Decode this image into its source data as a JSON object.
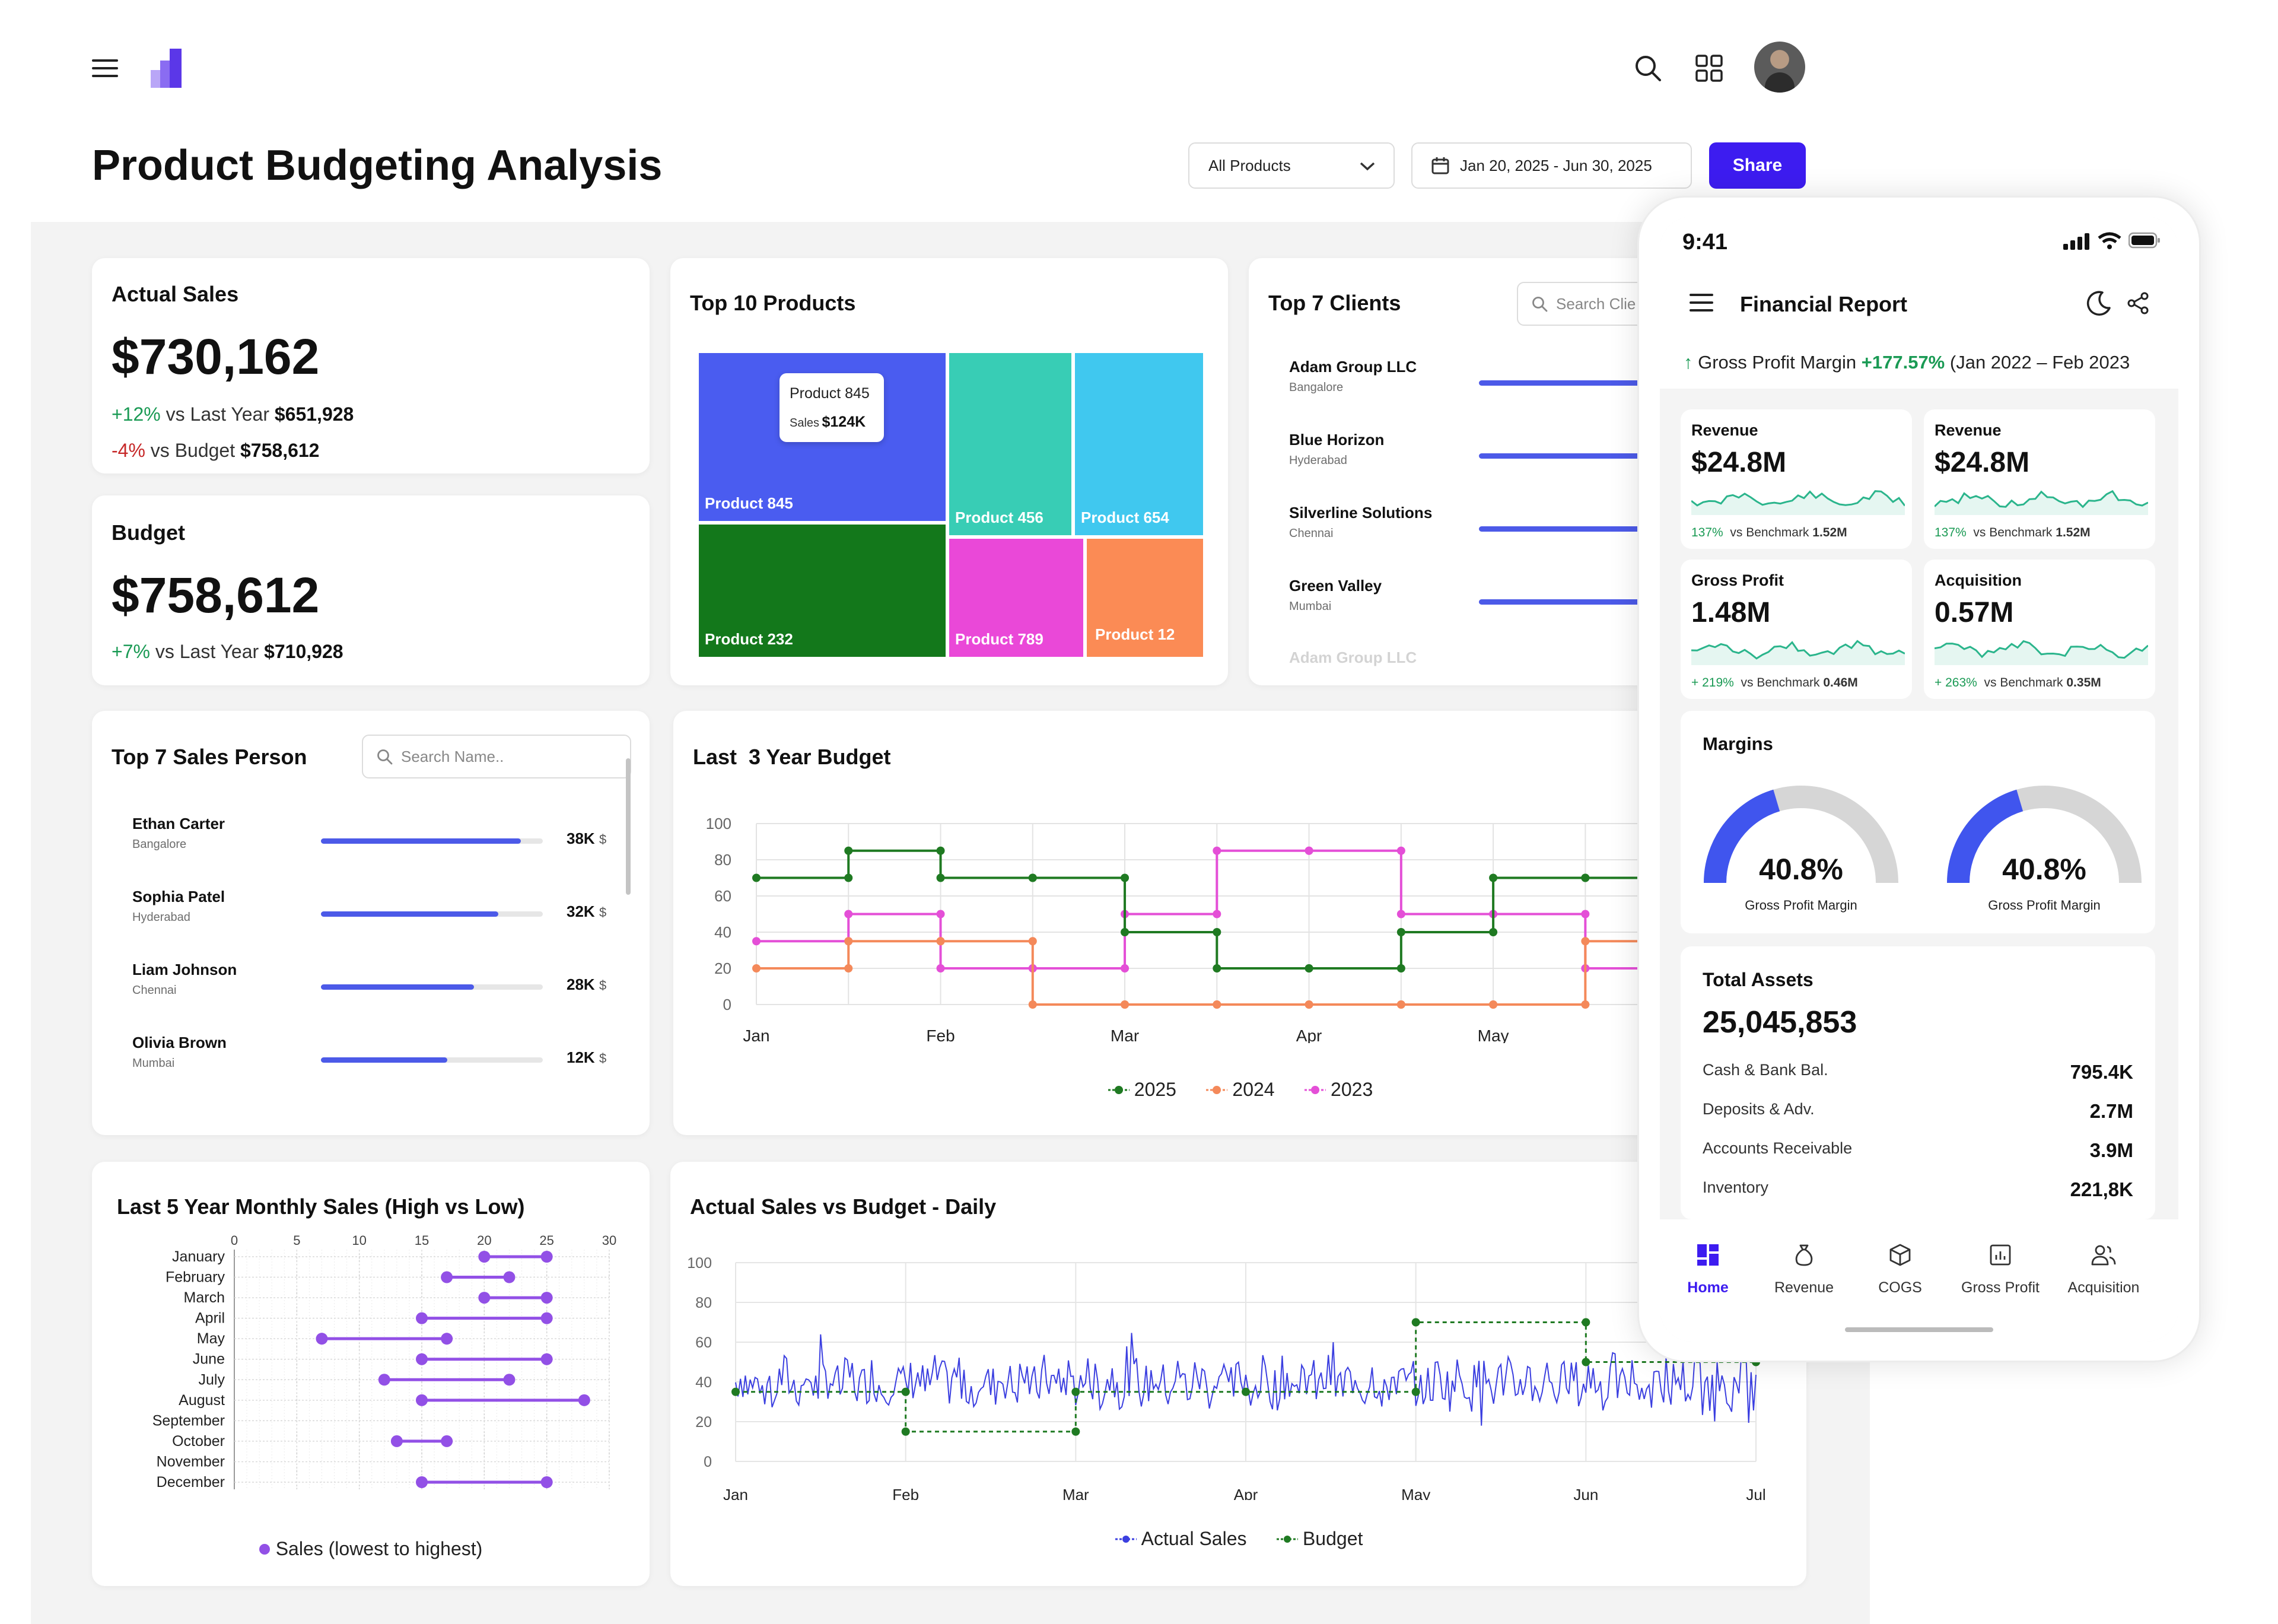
{
  "header": {
    "title": "Product Budgeting Analysis",
    "product_filter": "All Products",
    "date_range": "Jan 20, 2025 - Jun 30, 2025",
    "share_label": "Share"
  },
  "actual_sales": {
    "title": "Actual Sales",
    "value": "$730,162",
    "line1_pct": "+12%",
    "line1_text": "vs Last Year",
    "line1_value": "$651,928",
    "line2_pct": "-4%",
    "line2_text": "vs Budget",
    "line2_value": "$758,612"
  },
  "budget": {
    "title": "Budget",
    "value": "$758,612",
    "line1_pct": "+7%",
    "line1_text": "vs Last Year",
    "line1_value": "$710,928"
  },
  "top_products": {
    "title": "Top 10 Products",
    "tiles": [
      {
        "label": "Product 845",
        "color": "#4a5cf0"
      },
      {
        "label": "Product 456",
        "color": "#38cdb5"
      },
      {
        "label": "Product 654",
        "color": "#40c8ef"
      },
      {
        "label": "Product 232",
        "color": "#13781b"
      },
      {
        "label": "Product 789",
        "color": "#ea48d8"
      },
      {
        "label": "Product 12",
        "color": "#fb8b55"
      }
    ],
    "tooltip_name": "Product 845",
    "tooltip_label": "Sales",
    "tooltip_value": "$124K"
  },
  "top_clients": {
    "title": "Top 7 Clients",
    "search_placeholder": "Search Clie",
    "items": [
      {
        "name": "Adam Group LLC",
        "city": "Bangalore",
        "level": 0.9
      },
      {
        "name": "Blue Horizon",
        "city": "Hyderabad",
        "level": 0.82
      },
      {
        "name": "Silverline Solutions",
        "city": "Chennai",
        "level": 0.74
      },
      {
        "name": "Green Valley",
        "city": "Mumbai",
        "level": 0.6
      },
      {
        "name": "Adam Group LLC",
        "city": "",
        "level": 0.5
      }
    ]
  },
  "sales_person": {
    "title": "Top 7 Sales Person",
    "search_placeholder": "Search Name..",
    "items": [
      {
        "name": "Ethan Carter",
        "city": "Bangalore",
        "value": "38K",
        "unit": "$",
        "level": 0.9
      },
      {
        "name": "Sophia Patel",
        "city": "Hyderabad",
        "value": "32K",
        "unit": "$",
        "level": 0.8
      },
      {
        "name": "Liam Johnson",
        "city": "Chennai",
        "value": "28K",
        "unit": "$",
        "level": 0.69
      },
      {
        "name": "Olivia Brown",
        "city": "Mumbai",
        "value": "12K",
        "unit": "$",
        "level": 0.57
      }
    ]
  },
  "budget_chart": {
    "title": "Last  3 Year Budget",
    "legend": [
      "2025",
      "2024",
      "2023"
    ],
    "colors": [
      "#1f7a22",
      "#f4895a",
      "#e44fd7"
    ]
  },
  "monthly_chart": {
    "title": "Last 5 Year Monthly Sales (High vs Low)",
    "legend": "Sales (lowest to highest)",
    "color": "#9250e6"
  },
  "daily_chart": {
    "title": "Actual Sales vs Budget - Daily",
    "legend": [
      "Actual Sales",
      "Budget"
    ],
    "colors": [
      "#3b3fe0",
      "#1f7a22"
    ]
  },
  "chart_data": [
    {
      "type": "line",
      "title": "Last  3 Year Budget",
      "categories": [
        "Jan",
        "Feb",
        "Mar",
        "Apr",
        "May",
        "Jun"
      ],
      "ylim": [
        0,
        100
      ],
      "yticks": [
        0,
        20,
        40,
        60,
        80,
        100
      ],
      "grid": true,
      "legend_position": "bottom",
      "series": [
        {
          "name": "2025",
          "x": [
            0,
            0.5,
            1,
            1.5,
            2,
            2.5,
            3,
            3.5,
            4,
            4.5,
            5
          ],
          "values": [
            70,
            85,
            70,
            70,
            40,
            20,
            20,
            40,
            70,
            70,
            85
          ]
        },
        {
          "name": "2024",
          "x": [
            0,
            0.5,
            1,
            1.5,
            2,
            2.5,
            3,
            3.5,
            4,
            4.5,
            5
          ],
          "values": [
            20,
            35,
            35,
            0,
            0,
            0,
            0,
            0,
            0,
            35,
            35
          ]
        },
        {
          "name": "2023",
          "x": [
            0,
            0.5,
            1,
            1.5,
            2,
            2.5,
            3,
            3.5,
            4,
            4.5,
            5
          ],
          "values": [
            35,
            50,
            20,
            20,
            50,
            85,
            85,
            50,
            50,
            20,
            50
          ]
        }
      ]
    },
    {
      "type": "scatter",
      "title": "Last 5 Year Monthly Sales (High vs Low)",
      "categories": [
        "January",
        "February",
        "March",
        "April",
        "May",
        "June",
        "July",
        "August",
        "September",
        "October",
        "November",
        "December"
      ],
      "xlim": [
        0,
        30
      ],
      "xticks": [
        0,
        5,
        10,
        15,
        20,
        25,
        30
      ],
      "low": [
        20,
        17,
        20,
        15,
        7,
        15,
        12,
        15,
        0,
        13,
        0,
        15
      ],
      "high": [
        25,
        22,
        25,
        25,
        17,
        25,
        22,
        28,
        0,
        17,
        0,
        25
      ],
      "legend": "Sales (lowest to highest)"
    },
    {
      "type": "line",
      "title": "Actual Sales vs Budget - Daily",
      "categories": [
        "Jan",
        "Feb",
        "Mar",
        "Apr",
        "May",
        "Jun",
        "Jul"
      ],
      "ylim": [
        0,
        100
      ],
      "yticks": [
        0,
        20,
        40,
        60,
        80,
        100
      ],
      "series": [
        {
          "name": "Budget",
          "x": [
            0,
            1,
            1,
            2,
            2,
            3,
            4,
            4,
            5,
            5,
            6
          ],
          "values": [
            35,
            35,
            15,
            15,
            35,
            35,
            35,
            70,
            70,
            50,
            50
          ]
        },
        {
          "name": "Actual Sales",
          "approx_mean": 40,
          "approx_range": [
            20,
            65
          ]
        }
      ]
    }
  ],
  "phone": {
    "time": "9:41",
    "title": "Financial Report",
    "gpm_label": "Gross Profit Margin",
    "gpm_value": "+177.57%",
    "gpm_period": "(Jan 2022 – Feb 2023",
    "cards": [
      {
        "title": "Revenue",
        "value": "$24.8M",
        "pct": "137%",
        "text": "vs Benchmark",
        "bench": "1.52M"
      },
      {
        "title": "Revenue",
        "value": "$24.8M",
        "pct": "137%",
        "text": "vs Benchmark",
        "bench": "1.52M"
      },
      {
        "title": "Gross Profit",
        "value": "1.48M",
        "pct": "+ 219%",
        "text": "vs Benchmark",
        "bench": "0.46M"
      },
      {
        "title": "Acquisition",
        "value": "0.57M",
        "pct": "+ 263%",
        "text": "vs Benchmark",
        "bench": "0.35M"
      }
    ],
    "margins": {
      "title": "Margins",
      "gauges": [
        {
          "value": "40.8%",
          "label": "Gross Profit Margin",
          "level": 0.408
        },
        {
          "value": "40.8%",
          "label": "Gross Profit Margin",
          "level": 0.408
        }
      ]
    },
    "assets": {
      "title": "Total Assets",
      "value": "25,045,853",
      "rows": [
        {
          "label": "Cash & Bank Bal.",
          "value": "795.4K"
        },
        {
          "label": "Deposits & Adv.",
          "value": "2.7M"
        },
        {
          "label": "Accounts Receivable",
          "value": "3.9M"
        },
        {
          "label": "Inventory",
          "value": "221,8K"
        }
      ]
    },
    "nav": [
      "Home",
      "Revenue",
      "COGS",
      "Gross Profit",
      "Acquisition"
    ],
    "accent": "#3d1cf0"
  }
}
